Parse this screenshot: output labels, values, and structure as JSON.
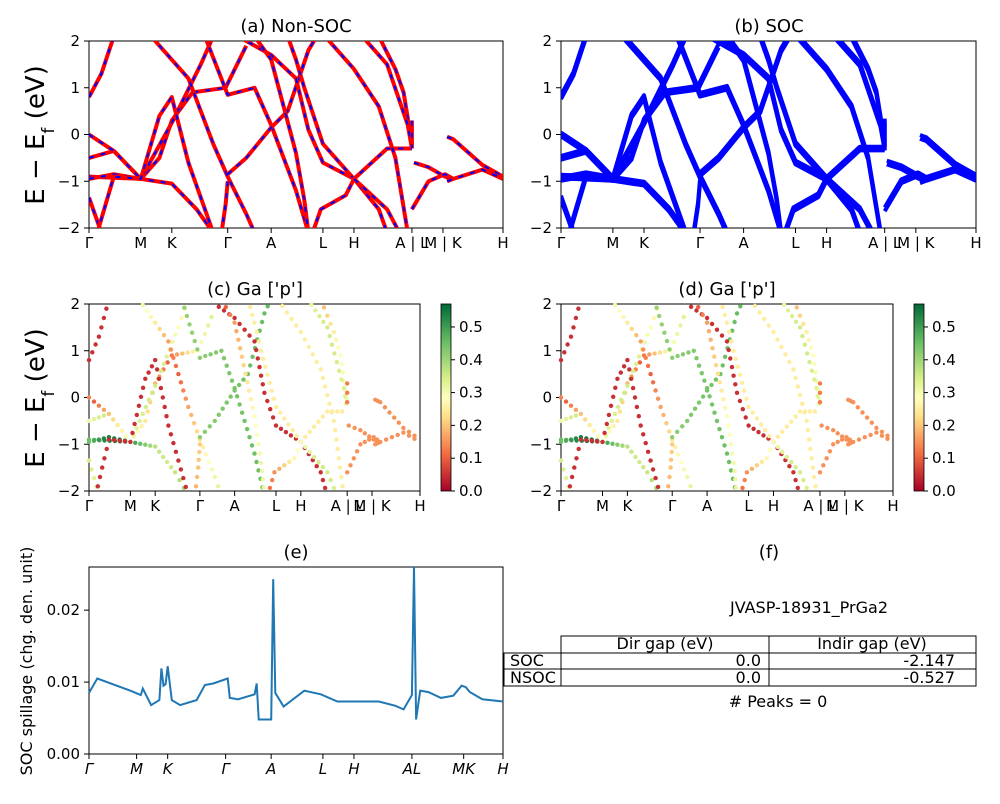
{
  "bands_kpath": {
    "labels": [
      "Γ",
      "M",
      "K",
      "Γ",
      "A",
      "L",
      "H",
      "A | L",
      "M | K",
      "H"
    ],
    "fractions": [
      0,
      0.125,
      0.2,
      0.335,
      0.44,
      0.565,
      0.64,
      0.78,
      0.855,
      1.0
    ]
  },
  "projected_kpath": {
    "labels": [
      "Γ",
      "M",
      "K",
      "Γ",
      "A",
      "L",
      "H",
      "A | L",
      "M | K",
      "H"
    ],
    "fractions": [
      0,
      0.125,
      0.2,
      0.335,
      0.44,
      0.565,
      0.64,
      0.78,
      0.855,
      1.0
    ]
  },
  "spillage_kpath": {
    "labels": [
      "Γ",
      "M",
      "K",
      "Γ",
      "A",
      "L",
      "H",
      "AL",
      "MK",
      "H"
    ],
    "fractions": [
      0,
      0.115,
      0.19,
      0.33,
      0.44,
      0.565,
      0.64,
      0.78,
      0.905,
      1.0
    ]
  },
  "energy_ylabel": "E − E",
  "energy_ylabel_sub": "f",
  "energy_ylabel_unit": " (eV)",
  "colors": {
    "nonsoc_line": "#ff0000",
    "nonsoc_dash": "#0000ff",
    "soc_line": "#0000ff",
    "spillage_line": "#1f77b4",
    "colormap": "RdYlGn"
  },
  "colorbar_ticks": [
    "0.0",
    "0.1",
    "0.2",
    "0.3",
    "0.4",
    "0.5"
  ],
  "panel_f": {
    "title": "(f)",
    "material": "JVASP-18931_PrGa2",
    "table": {
      "header": [
        "Dir gap (eV)",
        "Indir gap (eV)"
      ],
      "rows": [
        {
          "label": "SOC",
          "dir": "0.0",
          "indir": "-2.147"
        },
        {
          "label": "NSOC",
          "dir": "0.0",
          "indir": "-0.527"
        }
      ]
    },
    "peaks": "# Peaks = 0"
  },
  "chart_data": [
    {
      "type": "line",
      "title": "(a) Non-SOC",
      "ylim": [
        -2,
        2
      ],
      "yticks": [
        "-2",
        "-1",
        "0",
        "1",
        "2"
      ],
      "series": [
        {
          "x": [
            0,
            0.12,
            0.2,
            0.34,
            0.44,
            0.56,
            0.64,
            0.78
          ],
          "y": [
            0.8,
            1.95,
            1.7,
            1.0,
            -0.3,
            -1.8,
            -1.0,
            -0.3
          ]
        },
        {
          "x": [
            0,
            0.12,
            0.2,
            0.34,
            0.44,
            0.56,
            0.64,
            0.78
          ],
          "y": [
            -0.5,
            -0.9,
            0.9,
            0.8,
            0.1,
            -0.6,
            -1.0,
            -0.7
          ]
        },
        {
          "x": [
            0,
            0.12,
            0.2,
            0.34,
            0.44,
            0.56,
            0.64,
            0.78
          ],
          "y": [
            -0.9,
            -0.9,
            -0.4,
            -0.9,
            0.1,
            -0.6,
            -0.9,
            -0.2
          ]
        }
      ]
    },
    {
      "type": "line",
      "title": "(b) SOC",
      "ylim": [
        -2,
        2
      ],
      "yticks": [
        "-2",
        "-1",
        "0",
        "1",
        "2"
      ],
      "series": [
        {
          "x": [
            0,
            0.12,
            0.2,
            0.34,
            0.44,
            0.56,
            0.64,
            0.78
          ],
          "y": [
            0.8,
            1.95,
            1.7,
            1.0,
            -0.3,
            -1.8,
            -1.0,
            -0.3
          ]
        },
        {
          "x": [
            0,
            0.12,
            0.2,
            0.34,
            0.44,
            0.56,
            0.64,
            0.78
          ],
          "y": [
            -0.5,
            -0.9,
            0.9,
            0.8,
            0.1,
            -0.6,
            -1.0,
            -0.7
          ]
        }
      ]
    },
    {
      "type": "scatter",
      "title": "(c)  Ga ['p']",
      "ylim": [
        -2,
        2
      ],
      "yticks": [
        "-2",
        "-1",
        "0",
        "1",
        "2"
      ],
      "colorbar_range": [
        0,
        0.57
      ]
    },
    {
      "type": "scatter",
      "title": "(d) Ga ['p']",
      "ylim": [
        -2,
        2
      ],
      "yticks": [
        "-2",
        "-1",
        "0",
        "1",
        "2"
      ],
      "colorbar_range": [
        0,
        0.57
      ]
    },
    {
      "type": "line",
      "title": "(e)",
      "ylabel": "SOC spillage (chg. den. unit)",
      "ylim": [
        0,
        0.026
      ],
      "yticks": [
        "0.00",
        "0.01",
        "0.02"
      ],
      "x": [
        0,
        0.02,
        0.1,
        0.125,
        0.13,
        0.15,
        0.17,
        0.175,
        0.18,
        0.185,
        0.19,
        0.2,
        0.22,
        0.26,
        0.28,
        0.3,
        0.335,
        0.34,
        0.36,
        0.4,
        0.405,
        0.41,
        0.44,
        0.445,
        0.45,
        0.47,
        0.52,
        0.56,
        0.6,
        0.64,
        0.7,
        0.74,
        0.76,
        0.78,
        0.785,
        0.79,
        0.8,
        0.82,
        0.85,
        0.88,
        0.9,
        0.91,
        0.92,
        0.95,
        1.0
      ],
      "y": [
        0.0085,
        0.0105,
        0.0088,
        0.0082,
        0.0091,
        0.0068,
        0.0075,
        0.0119,
        0.0095,
        0.0097,
        0.0122,
        0.0075,
        0.0068,
        0.0075,
        0.0096,
        0.0098,
        0.0105,
        0.0078,
        0.0076,
        0.0083,
        0.0098,
        0.0048,
        0.0048,
        0.0243,
        0.0085,
        0.0066,
        0.0088,
        0.0083,
        0.0073,
        0.0073,
        0.0073,
        0.0067,
        0.0062,
        0.0082,
        0.026,
        0.0048,
        0.0088,
        0.0086,
        0.0078,
        0.0081,
        0.0095,
        0.0093,
        0.0086,
        0.0076,
        0.0073
      ]
    }
  ]
}
